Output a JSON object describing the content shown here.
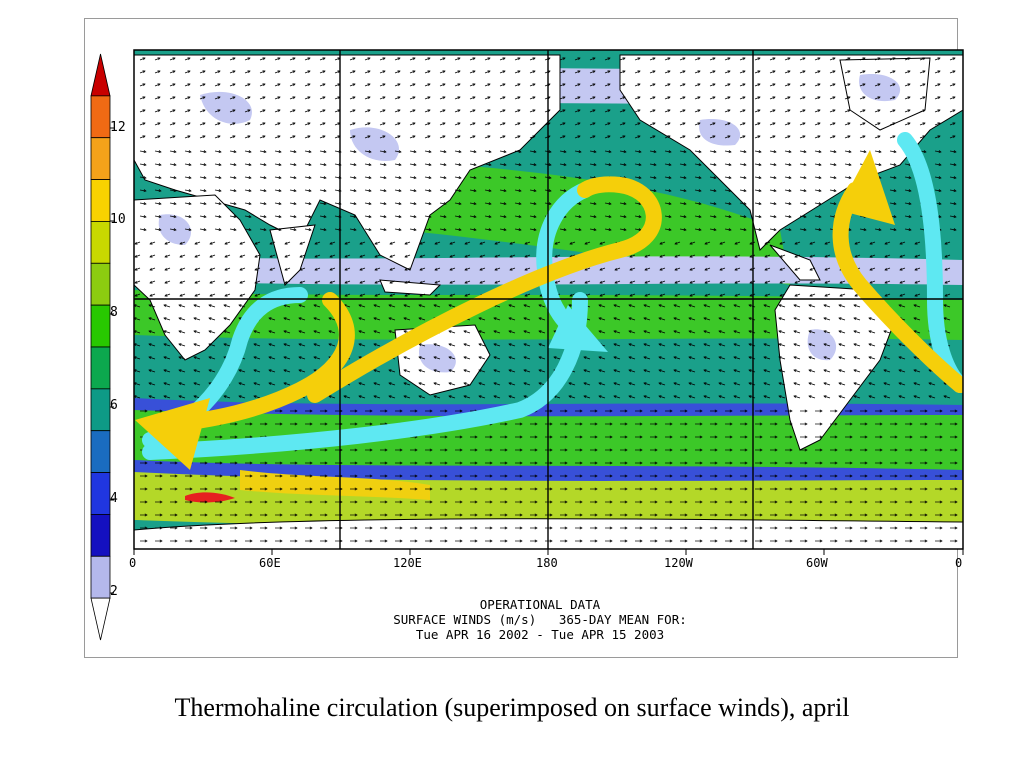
{
  "colorbar": {
    "labels": [
      "12",
      "10",
      "8",
      "6",
      "4",
      "2"
    ],
    "colors": [
      "#c80000",
      "#f06a14",
      "#f4a21a",
      "#f8d200",
      "#c8d800",
      "#8ccc10",
      "#28c800",
      "#0ca84e",
      "#0e9a86",
      "#1a6cc0",
      "#2036e0",
      "#1410c0",
      "#b4b8ec",
      "#ffffff"
    ]
  },
  "map": {
    "x_tick_labels": [
      "0",
      "60E",
      "120E",
      "180",
      "120W",
      "60W",
      "0"
    ],
    "info_lines": [
      "OPERATIONAL DATA",
      "SURFACE WINDS (m/s)   365-DAY MEAN FOR:",
      "Tue APR 16 2002 - Tue APR 15 2003"
    ],
    "arrow_colors": {
      "warm": "#f5cf0a",
      "cold": "#5ee8f2"
    },
    "field_colors": {
      "land": "#ffffff",
      "calm": "#c4c8f2",
      "light": "#3850d8",
      "moderate": "#1aa08a",
      "fresh": "#3cc828",
      "strong": "#b4d828",
      "gale": "#f0d010",
      "extreme": "#e62020"
    }
  },
  "caption": "Thermohaline circulation (superimposed on surface winds), april"
}
